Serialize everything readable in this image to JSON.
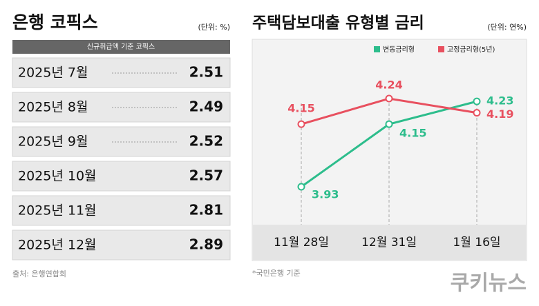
{
  "table": {
    "title": "은행 코픽스",
    "unit": "(단위: %)",
    "header": "신규취급액 기준 코픽스",
    "rows": [
      [
        "2025년 7월",
        2.51
      ],
      [
        "2025년 8월",
        2.49
      ],
      [
        "2025년 9월",
        2.52
      ],
      [
        "2025년 10월",
        2.57
      ],
      [
        "2025년 11월",
        2.81
      ],
      [
        "2025년 12월",
        2.89
      ]
    ],
    "source": "출처: 은행연합회"
  },
  "chart_data": {
    "type": "line",
    "title": "주택담보대출 유형별 금리",
    "unit": "(단위: 연%)",
    "categories": [
      "11월 28일",
      "12월 31일",
      "1월 16일"
    ],
    "series": [
      {
        "name": "변동금리형",
        "color": "#2dbd8c",
        "values": [
          3.93,
          4.15,
          4.23
        ]
      },
      {
        "name": "고정금리형(5년)",
        "color": "#e8505f",
        "values": [
          4.15,
          4.24,
          4.19
        ]
      }
    ],
    "note": "*국민은행 기준"
  },
  "footer": {
    "logo": "쿠키뉴스"
  }
}
